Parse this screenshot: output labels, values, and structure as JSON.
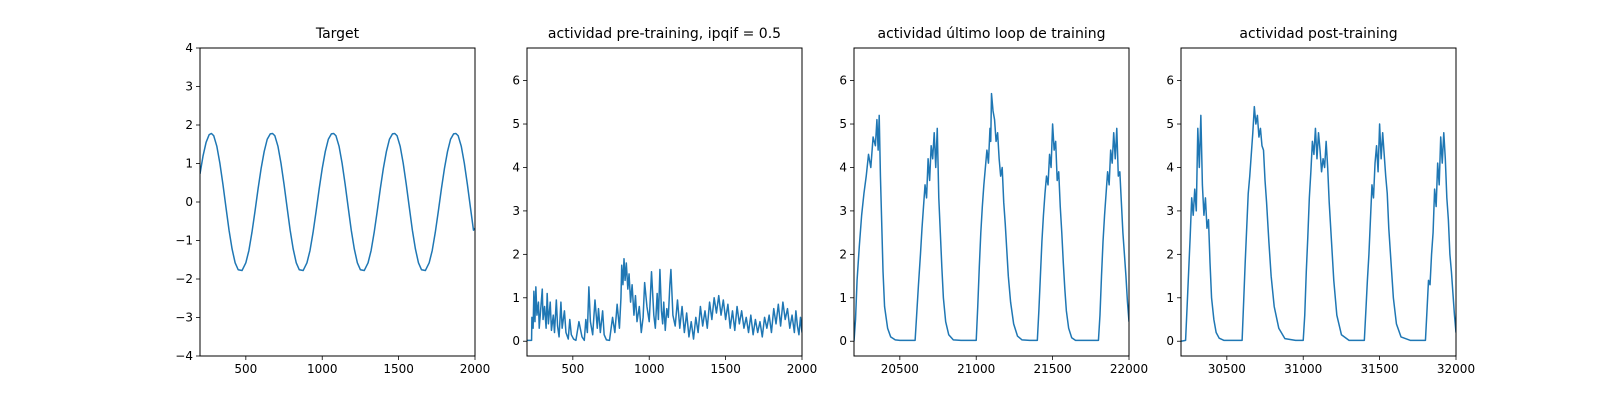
{
  "chart_data": [
    {
      "type": "line",
      "title": "Target",
      "xlim": [
        200,
        2000
      ],
      "ylim": [
        -4,
        4
      ],
      "xticks": [
        500,
        1000,
        1500,
        2000
      ],
      "yticks": [
        -4,
        -3,
        -2,
        -1,
        0,
        1,
        2,
        3,
        4
      ],
      "xtick_labels": [
        "500",
        "1000",
        "1500",
        "2000"
      ],
      "ytick_labels": [
        "−4",
        "−3",
        "−2",
        "−1",
        "0",
        "1",
        "2",
        "3",
        "4"
      ],
      "series": [
        {
          "color": "#1f77b4",
          "x": [
            200,
            220,
            240,
            260,
            275,
            290,
            310,
            330,
            350,
            370,
            390,
            410,
            430,
            450,
            475,
            500,
            520,
            540,
            560,
            580,
            600,
            620,
            640,
            660,
            675,
            690,
            710,
            730,
            750,
            770,
            790,
            810,
            830,
            850,
            875,
            900,
            920,
            940,
            960,
            980,
            1000,
            1020,
            1040,
            1060,
            1075,
            1090,
            1110,
            1130,
            1150,
            1170,
            1190,
            1210,
            1230,
            1250,
            1275,
            1300,
            1320,
            1340,
            1360,
            1380,
            1400,
            1420,
            1440,
            1460,
            1475,
            1490,
            1510,
            1530,
            1550,
            1570,
            1590,
            1610,
            1630,
            1650,
            1675,
            1700,
            1720,
            1740,
            1760,
            1780,
            1800,
            1820,
            1840,
            1860,
            1875,
            1890,
            1910,
            1930,
            1950,
            1970,
            1990,
            2000
          ],
          "y": [
            0.73,
            1.2,
            1.55,
            1.75,
            1.78,
            1.72,
            1.45,
            1.01,
            0.46,
            -0.14,
            -0.73,
            -1.22,
            -1.58,
            -1.76,
            -1.78,
            -1.58,
            -1.26,
            -0.79,
            -0.24,
            0.34,
            0.87,
            1.31,
            1.63,
            1.77,
            1.78,
            1.72,
            1.45,
            1.01,
            0.46,
            -0.14,
            -0.73,
            -1.22,
            -1.58,
            -1.76,
            -1.78,
            -1.58,
            -1.26,
            -0.79,
            -0.24,
            0.34,
            0.87,
            1.31,
            1.63,
            1.77,
            1.78,
            1.72,
            1.45,
            1.01,
            0.46,
            -0.14,
            -0.73,
            -1.22,
            -1.58,
            -1.76,
            -1.78,
            -1.58,
            -1.26,
            -0.79,
            -0.24,
            0.34,
            0.87,
            1.31,
            1.63,
            1.77,
            1.78,
            1.72,
            1.45,
            1.01,
            0.46,
            -0.14,
            -0.73,
            -1.22,
            -1.58,
            -1.76,
            -1.78,
            -1.58,
            -1.26,
            -0.79,
            -0.24,
            0.34,
            0.87,
            1.31,
            1.63,
            1.77,
            1.78,
            1.72,
            1.45,
            1.01,
            0.46,
            -0.14,
            -0.73,
            -0.68
          ]
        }
      ]
    },
    {
      "type": "line",
      "title": "actividad pre-training, ipqif = 0.5",
      "xlim": [
        200,
        2000
      ],
      "ylim": [
        -0.34,
        6.75
      ],
      "xticks": [
        500,
        1000,
        1500,
        2000
      ],
      "yticks": [
        0,
        1,
        2,
        3,
        4,
        5,
        6
      ],
      "xtick_labels": [
        "500",
        "1000",
        "1500",
        "2000"
      ],
      "ytick_labels": [
        "0",
        "1",
        "2",
        "3",
        "4",
        "5",
        "6"
      ],
      "series": [
        {
          "color": "#1f77b4",
          "x": [
            200,
            230,
            232,
            240,
            245,
            252,
            258,
            265,
            275,
            280,
            290,
            300,
            305,
            315,
            325,
            332,
            340,
            352,
            360,
            372,
            380,
            392,
            400,
            410,
            422,
            430,
            445,
            455,
            470,
            480,
            490,
            505,
            520,
            540,
            560,
            575,
            585,
            595,
            605,
            615,
            630,
            645,
            660,
            668,
            680,
            695,
            705,
            720,
            740,
            760,
            775,
            790,
            805,
            815,
            820,
            828,
            835,
            842,
            850,
            860,
            868,
            878,
            888,
            900,
            910,
            920,
            935,
            948,
            960,
            970,
            985,
            1000,
            1015,
            1030,
            1040,
            1052,
            1060,
            1070,
            1080,
            1088,
            1095,
            1105,
            1115,
            1125,
            1135,
            1142,
            1155,
            1170,
            1185,
            1200,
            1215,
            1230,
            1245,
            1260,
            1275,
            1290,
            1305,
            1320,
            1335,
            1350,
            1365,
            1380,
            1395,
            1410,
            1425,
            1440,
            1455,
            1470,
            1485,
            1500,
            1515,
            1530,
            1545,
            1560,
            1575,
            1590,
            1605,
            1620,
            1635,
            1650,
            1665,
            1680,
            1695,
            1710,
            1725,
            1740,
            1755,
            1770,
            1785,
            1800,
            1815,
            1830,
            1845,
            1860,
            1875,
            1890,
            1905,
            1920,
            1935,
            1950,
            1960,
            1970,
            1980,
            1990,
            2000
          ],
          "y": [
            0.02,
            0.02,
            0.55,
            0.3,
            1.15,
            0.45,
            1.25,
            0.6,
            0.9,
            0.3,
            0.75,
            1.2,
            0.5,
            0.8,
            0.3,
            1.1,
            0.4,
            0.9,
            0.25,
            0.6,
            0.2,
            0.95,
            0.35,
            0.1,
            0.9,
            0.3,
            0.7,
            0.2,
            0.05,
            0.5,
            0.15,
            0.05,
            0.02,
            0.45,
            0.1,
            0.02,
            0.5,
            0.2,
            1.25,
            0.45,
            0.15,
            0.95,
            0.3,
            0.75,
            0.2,
            0.7,
            0.15,
            0.03,
            0.02,
            0.55,
            0.2,
            0.85,
            0.3,
            1.0,
            1.75,
            1.3,
            1.9,
            1.4,
            1.8,
            1.2,
            1.55,
            0.9,
            1.3,
            0.6,
            1.05,
            0.45,
            0.8,
            0.2,
            0.55,
            1.35,
            0.8,
            0.45,
            1.6,
            0.6,
            0.3,
            1.1,
            0.5,
            1.65,
            0.7,
            0.4,
            0.9,
            0.25,
            0.75,
            0.55,
            1.3,
            1.65,
            0.6,
            0.35,
            0.95,
            0.3,
            0.8,
            0.2,
            0.65,
            0.1,
            0.45,
            0.05,
            0.55,
            0.2,
            0.8,
            0.35,
            0.7,
            0.3,
            0.9,
            0.5,
            1.0,
            0.65,
            1.05,
            0.6,
            0.95,
            0.5,
            0.85,
            0.3,
            0.7,
            0.25,
            0.8,
            0.4,
            0.7,
            0.3,
            0.55,
            0.2,
            0.6,
            0.15,
            0.5,
            0.2,
            0.45,
            0.1,
            0.55,
            0.3,
            0.6,
            0.2,
            0.75,
            0.4,
            0.85,
            0.35,
            0.9,
            0.5,
            0.75,
            0.3,
            0.6,
            0.2,
            0.7,
            0.35,
            0.15,
            0.55,
            0.2
          ]
        }
      ]
    },
    {
      "type": "line",
      "title": "actividad último loop de training",
      "xlim": [
        20200,
        22000
      ],
      "ylim": [
        -0.34,
        6.75
      ],
      "xticks": [
        20500,
        21000,
        21500,
        22000
      ],
      "yticks": [
        0,
        1,
        2,
        3,
        4,
        5,
        6
      ],
      "xtick_labels": [
        "20500",
        "21000",
        "21500",
        "22000"
      ],
      "ytick_labels": [
        "0",
        "1",
        "2",
        "3",
        "4",
        "5",
        "6"
      ],
      "series": [
        {
          "color": "#1f77b4",
          "x": [
            20200,
            20210,
            20220,
            20235,
            20250,
            20265,
            20280,
            20295,
            20310,
            20325,
            20340,
            20350,
            20358,
            20365,
            20373,
            20380,
            20390,
            20400,
            20420,
            20440,
            20470,
            20500,
            20550,
            20600,
            20610,
            20622,
            20635,
            20645,
            20655,
            20665,
            20675,
            20685,
            20695,
            20705,
            20715,
            20725,
            20735,
            20745,
            20755,
            20765,
            20775,
            20785,
            20800,
            20820,
            20850,
            20900,
            20950,
            21000,
            21010,
            21020,
            21030,
            21040,
            21050,
            21060,
            21070,
            21080,
            21090,
            21095,
            21100,
            21110,
            21120,
            21130,
            21140,
            21150,
            21160,
            21170,
            21180,
            21190,
            21200,
            21210,
            21225,
            21245,
            21270,
            21300,
            21350,
            21400,
            21410,
            21420,
            21430,
            21440,
            21450,
            21460,
            21470,
            21480,
            21490,
            21500,
            21510,
            21520,
            21530,
            21540,
            21550,
            21560,
            21570,
            21580,
            21590,
            21605,
            21625,
            21650,
            21700,
            21750,
            21800,
            21810,
            21820,
            21830,
            21840,
            21850,
            21860,
            21870,
            21880,
            21890,
            21900,
            21910,
            21920,
            21930,
            21940,
            21950,
            21960,
            21970,
            21980,
            21990,
            22000
          ],
          "y": [
            0.0,
            0.5,
            1.4,
            2.2,
            2.9,
            3.4,
            3.8,
            4.3,
            4.0,
            4.7,
            4.5,
            5.1,
            4.4,
            5.2,
            3.8,
            2.9,
            1.6,
            0.8,
            0.3,
            0.1,
            0.03,
            0.02,
            0.02,
            0.02,
            0.6,
            1.3,
            2.0,
            2.6,
            3.1,
            3.6,
            3.3,
            4.2,
            3.7,
            4.5,
            4.2,
            4.8,
            4.0,
            4.9,
            3.3,
            2.5,
            1.7,
            1.0,
            0.45,
            0.15,
            0.03,
            0.02,
            0.02,
            0.02,
            0.8,
            1.7,
            2.5,
            3.1,
            3.6,
            4.0,
            4.4,
            4.1,
            4.9,
            4.6,
            5.7,
            5.3,
            5.1,
            4.6,
            4.8,
            4.2,
            3.8,
            4.0,
            3.2,
            2.7,
            2.1,
            1.5,
            0.9,
            0.4,
            0.12,
            0.03,
            0.02,
            0.02,
            0.7,
            1.5,
            2.3,
            2.9,
            3.4,
            3.8,
            3.6,
            4.3,
            4.0,
            5.0,
            4.4,
            4.6,
            3.7,
            3.9,
            3.1,
            2.5,
            1.8,
            1.2,
            0.7,
            0.3,
            0.08,
            0.02,
            0.02,
            0.02,
            0.02,
            0.6,
            1.5,
            2.3,
            2.9,
            3.4,
            3.9,
            3.6,
            4.4,
            4.1,
            4.8,
            4.2,
            4.9,
            3.8,
            3.9,
            3.2,
            2.5,
            2.0,
            1.5,
            0.9,
            0.45
          ]
        }
      ]
    },
    {
      "type": "line",
      "title": "actividad post-training",
      "xlim": [
        30200,
        32000
      ],
      "ylim": [
        -0.34,
        6.75
      ],
      "xticks": [
        30500,
        31000,
        31500,
        32000
      ],
      "yticks": [
        0,
        1,
        2,
        3,
        4,
        5,
        6
      ],
      "xtick_labels": [
        "30500",
        "31000",
        "31500",
        "32000"
      ],
      "ytick_labels": [
        "0",
        "1",
        "2",
        "3",
        "4",
        "5",
        "6"
      ],
      "series": [
        {
          "color": "#1f77b4",
          "x": [
            30200,
            30230,
            30240,
            30250,
            30260,
            30270,
            30280,
            30290,
            30300,
            30310,
            30320,
            30330,
            30340,
            30350,
            30360,
            30370,
            30380,
            30390,
            30400,
            30415,
            30430,
            30450,
            30480,
            30520,
            30560,
            30600,
            30610,
            30620,
            30630,
            30640,
            30650,
            30660,
            30670,
            30680,
            30690,
            30700,
            30710,
            30720,
            30730,
            30740,
            30750,
            30760,
            30775,
            30790,
            30810,
            30840,
            30880,
            30950,
            31000,
            31010,
            31020,
            31030,
            31040,
            31050,
            31060,
            31070,
            31080,
            31090,
            31100,
            31110,
            31120,
            31130,
            31140,
            31150,
            31160,
            31170,
            31185,
            31200,
            31220,
            31250,
            31300,
            31350,
            31400,
            31410,
            31420,
            31430,
            31440,
            31450,
            31460,
            31470,
            31480,
            31490,
            31500,
            31510,
            31520,
            31530,
            31540,
            31550,
            31560,
            31575,
            31590,
            31610,
            31640,
            31700,
            31750,
            31800,
            31810,
            31820,
            31830,
            31840,
            31850,
            31860,
            31870,
            31880,
            31890,
            31900,
            31910,
            31920,
            31930,
            31940,
            31950,
            31960,
            31970,
            31980,
            31990,
            32000
          ],
          "y": [
            0.0,
            0.02,
            0.8,
            1.6,
            2.4,
            3.3,
            2.9,
            3.5,
            3.0,
            4.9,
            4.0,
            5.2,
            3.6,
            2.9,
            3.3,
            2.6,
            2.8,
            1.8,
            1.0,
            0.5,
            0.2,
            0.07,
            0.02,
            0.02,
            0.02,
            0.02,
            0.9,
            1.8,
            2.6,
            3.4,
            3.8,
            4.3,
            4.8,
            5.4,
            5.0,
            5.2,
            4.7,
            4.9,
            4.5,
            4.4,
            3.7,
            3.2,
            2.3,
            1.5,
            0.8,
            0.3,
            0.06,
            0.02,
            0.02,
            0.6,
            1.6,
            2.4,
            3.3,
            3.9,
            4.6,
            4.3,
            4.9,
            4.2,
            4.8,
            4.4,
            3.9,
            4.2,
            4.0,
            4.6,
            4.0,
            3.2,
            2.3,
            1.4,
            0.6,
            0.15,
            0.02,
            0.02,
            0.02,
            0.7,
            1.4,
            2.0,
            2.8,
            3.6,
            3.3,
            4.1,
            4.5,
            3.9,
            5.0,
            4.2,
            4.8,
            4.3,
            3.8,
            3.4,
            2.6,
            1.8,
            1.0,
            0.4,
            0.1,
            0.02,
            0.02,
            0.02,
            0.7,
            1.4,
            1.3,
            2.0,
            2.5,
            3.5,
            3.1,
            4.1,
            3.6,
            4.7,
            4.1,
            4.8,
            4.2,
            3.3,
            2.8,
            2.0,
            1.6,
            1.1,
            0.6,
            0.2
          ]
        }
      ]
    }
  ]
}
